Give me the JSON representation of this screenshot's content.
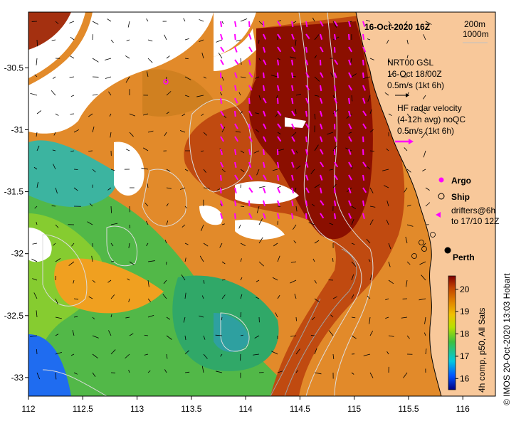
{
  "map": {
    "title": "16-Oct-2020 16Z",
    "city": "Perth",
    "x_ticks": [
      "112",
      "112.5",
      "113",
      "113.5",
      "114",
      "114.5",
      "115",
      "115.5",
      "116"
    ],
    "y_ticks": [
      "-30.5",
      "-31",
      "-31.5",
      "-32",
      "-32.5",
      "-33"
    ],
    "lon_range": [
      112,
      116.3
    ],
    "lat_range": [
      -33.15,
      -30.05
    ]
  },
  "legend": {
    "contours": [
      "200m",
      "1000m"
    ],
    "nrt_title": "NRT00 GSL",
    "nrt_time": "16-Oct 18:00Z",
    "nrt_scale": "0.5m/s (1kt 6h)",
    "hf_line1": "HF radar velocity",
    "hf_line2": "(4-12h avg) noQC",
    "hf_scale": "0.5m/s (1kt 6h)",
    "argo": "Argo",
    "ship": "Ship",
    "drifters_line1": "drifters@6h",
    "drifters_line2": "to 17/10 12Z"
  },
  "colorbar": {
    "ticks": [
      "20",
      "19",
      "18",
      "17",
      "16"
    ],
    "label": "4h comp, p50, All Sats",
    "range": [
      15.5,
      20.6
    ]
  },
  "credit": "© IMOS 20-Oct-2020 13:03 Hobart",
  "colors": {
    "land": "#f8c89a",
    "warm": "#8b0f00",
    "hf_arrow": "#ff00ff"
  }
}
